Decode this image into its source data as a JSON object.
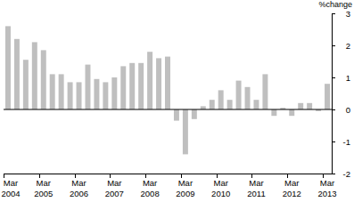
{
  "chart_data": {
    "type": "bar",
    "y_label": "%change",
    "categories": [
      "Mar 2004",
      null,
      null,
      null,
      "Mar 2005",
      null,
      null,
      null,
      "Mar 2006",
      null,
      null,
      null,
      "Mar 2007",
      null,
      null,
      null,
      "Mar 2008",
      null,
      null,
      null,
      "Mar 2009",
      null,
      null,
      null,
      "Mar 2010",
      null,
      null,
      null,
      "Mar 2011",
      null,
      null,
      null,
      "Mar 2012",
      null,
      null,
      null,
      "Mar 2013"
    ],
    "values": [
      2.6,
      2.2,
      1.55,
      2.1,
      1.85,
      1.1,
      1.1,
      0.85,
      0.85,
      1.4,
      0.95,
      0.85,
      1.0,
      1.35,
      1.45,
      1.45,
      1.8,
      1.6,
      1.65,
      -0.35,
      -1.4,
      -0.3,
      0.1,
      0.3,
      0.6,
      0.3,
      0.9,
      0.7,
      0.3,
      1.1,
      -0.2,
      0.05,
      -0.2,
      0.2,
      0.2,
      -0.05,
      0.8
    ],
    "color": "#bfbfbf",
    "ylim": [
      -2,
      3
    ],
    "yticks": [
      -2,
      -1,
      0,
      1,
      2,
      3
    ],
    "grid": false
  }
}
